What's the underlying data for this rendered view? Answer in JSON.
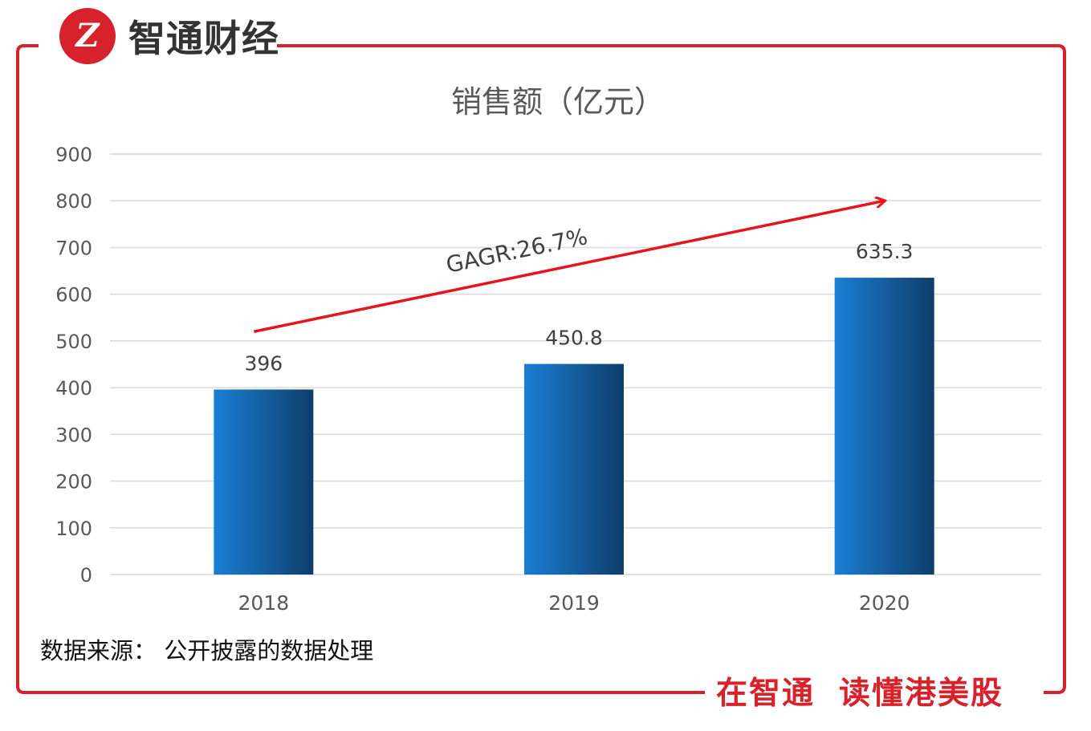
{
  "brand": {
    "logo_text": "Z",
    "name": "智通财经"
  },
  "source_note": "数据来源： 公开披露的数据处理",
  "slogan": {
    "part1": "在智通",
    "part2": "读懂港美股"
  },
  "colors": {
    "frame": "#d8222b",
    "bar_light": "#1a7fd4",
    "bar_dark": "#0e3d6b",
    "arrow": "#e8141c",
    "grid": "#d9d9d9",
    "text": "#595959"
  },
  "chart_data": {
    "type": "bar",
    "title": "销售额（亿元）",
    "categories": [
      "2018",
      "2019",
      "2020"
    ],
    "values": [
      396,
      450.8,
      635.3
    ],
    "data_labels": [
      "396",
      "450.8",
      "635.3"
    ],
    "ylim": [
      0,
      900
    ],
    "yticks": [
      0,
      100,
      200,
      300,
      400,
      500,
      600,
      700,
      800,
      900
    ],
    "grid": true,
    "xlabel": "",
    "ylabel": "",
    "annotation": {
      "text": "GAGR:26.7%",
      "arrow_from": {
        "category": "2018",
        "value": 520
      },
      "arrow_to": {
        "category": "2020",
        "value": 800
      }
    }
  }
}
